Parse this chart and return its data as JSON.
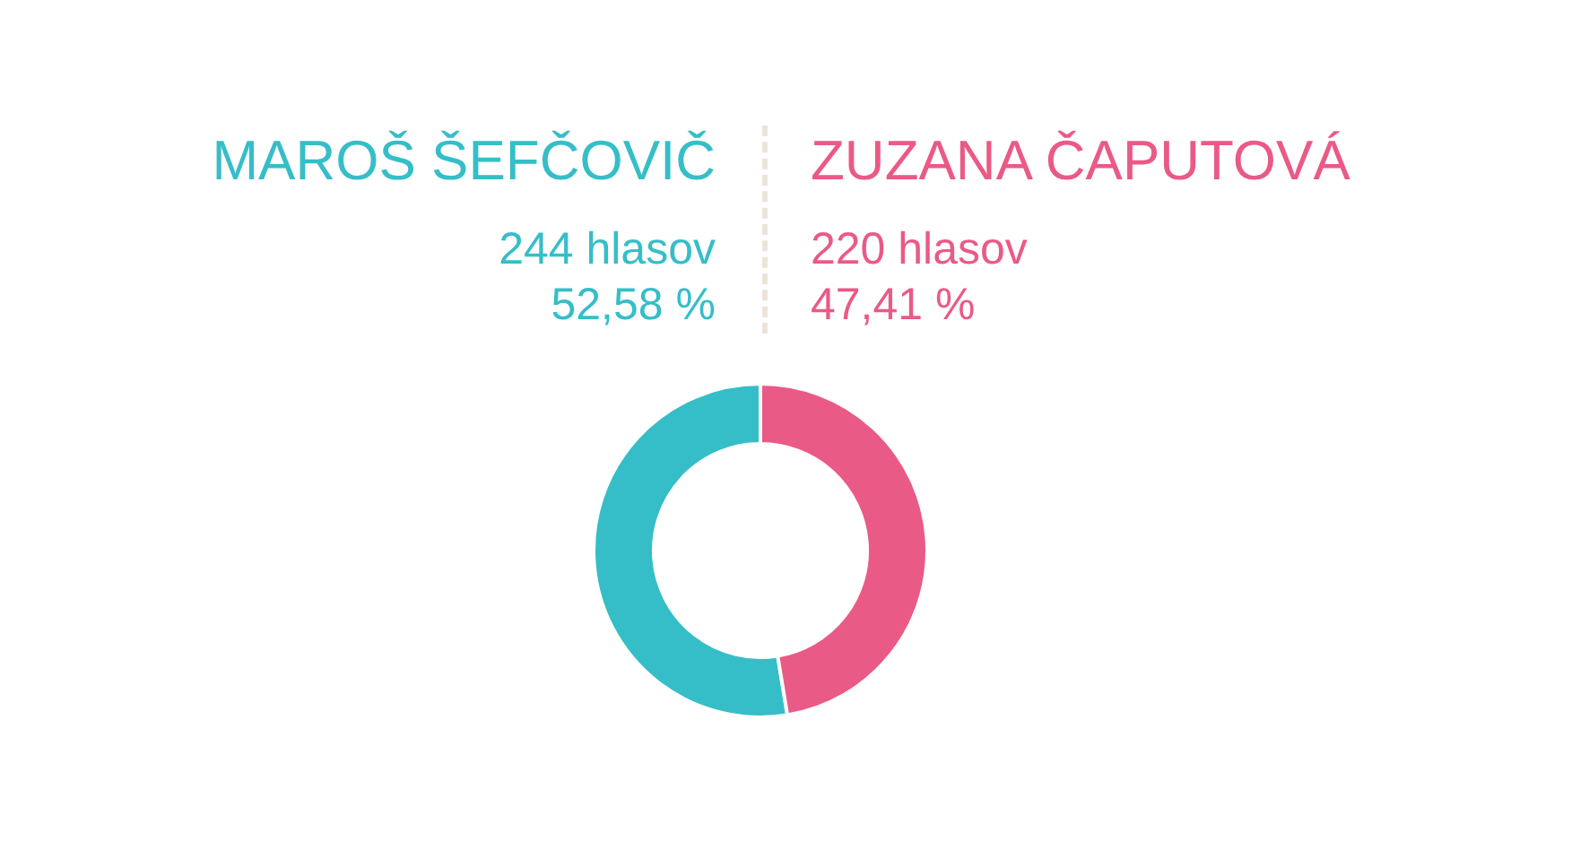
{
  "chart_data": {
    "type": "donut",
    "categories": [
      "MAROŠ ŠEFČOVIČ",
      "ZUZANA ČAPUTOVÁ"
    ],
    "values": [
      244,
      220
    ],
    "colors": [
      "#35bec8",
      "#ea5a86"
    ],
    "value_labels": [
      "244 hlasov",
      "220 hlasov"
    ],
    "annotations": [
      "52,58 %",
      "47,41 %"
    ]
  }
}
